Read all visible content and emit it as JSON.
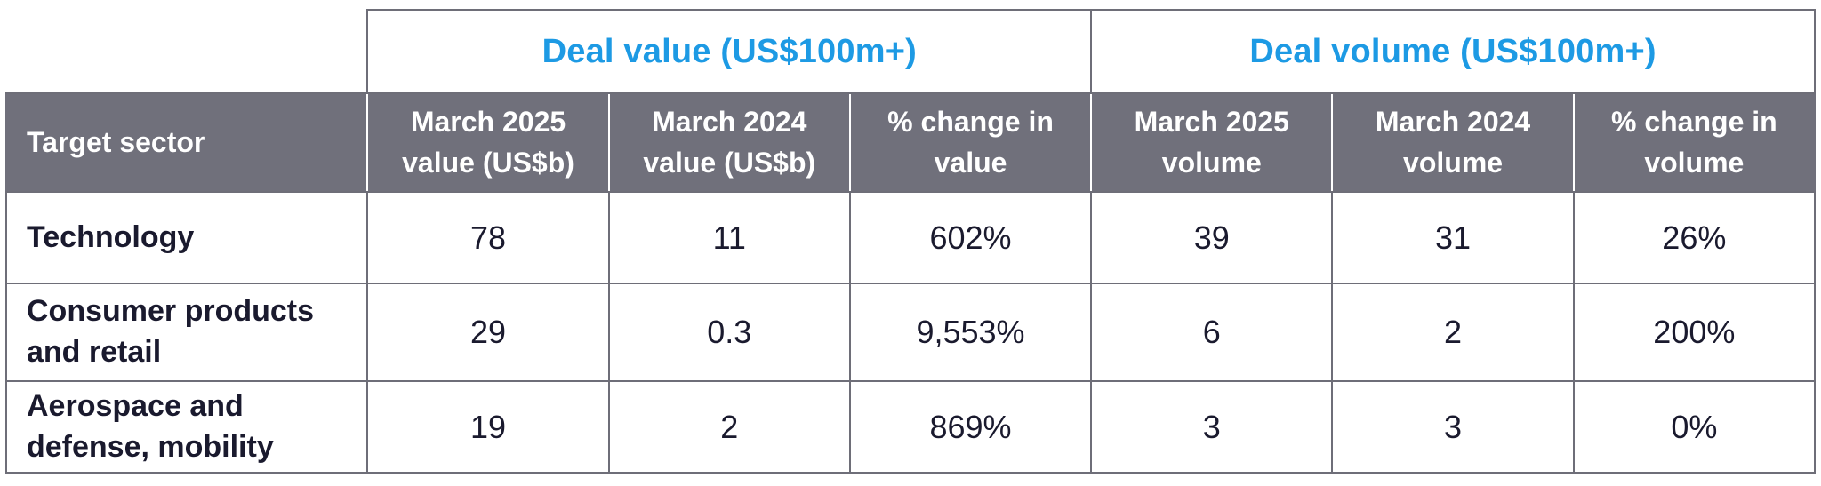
{
  "colors": {
    "accent_blue": "#1D9AE4",
    "header_bg": "#70707B",
    "header_text": "#FFFFFF",
    "body_text": "#1A1A2E",
    "border": "#6E6E78",
    "header_divider": "#FFFFFF",
    "background": "#FFFFFF"
  },
  "table": {
    "group_headers": [
      {
        "label": "Deal value (US$100m+)"
      },
      {
        "label": "Deal volume (US$100m+)"
      }
    ],
    "columns": [
      "Target sector",
      "March 2025 value (US$b)",
      "March 2024 value (US$b)",
      "% change in value",
      "March 2025 volume",
      "March 2024 volume",
      "% change in volume"
    ],
    "rows": [
      {
        "cells": [
          "Technology",
          "78",
          "11",
          "602%",
          "39",
          "31",
          "26%"
        ]
      },
      {
        "cells": [
          "Consumer products and retail",
          "29",
          "0.3",
          "9,553%",
          "6",
          "2",
          "200%"
        ]
      },
      {
        "cells": [
          "Aerospace and defense, mobility",
          "19",
          "2",
          "869%",
          "3",
          "3",
          "0%"
        ]
      }
    ]
  },
  "chart_data": {
    "type": "table",
    "title": "",
    "column_groups": [
      {
        "label": "Deal value (US$100m+)",
        "columns": [
          "March 2025 value (US$b)",
          "March 2024 value (US$b)",
          "% change in value"
        ]
      },
      {
        "label": "Deal volume (US$100m+)",
        "columns": [
          "March 2025 volume",
          "March 2024 volume",
          "% change in volume"
        ]
      }
    ],
    "columns": [
      "Target sector",
      "March 2025 value (US$b)",
      "March 2024 value (US$b)",
      "% change in value",
      "March 2025 volume",
      "March 2024 volume",
      "% change in volume"
    ],
    "rows": [
      [
        "Technology",
        78,
        11,
        "602%",
        39,
        31,
        "26%"
      ],
      [
        "Consumer products and retail",
        29,
        0.3,
        "9,553%",
        6,
        2,
        "200%"
      ],
      [
        "Aerospace and defense, mobility",
        19,
        2,
        "869%",
        3,
        3,
        "0%"
      ]
    ]
  }
}
